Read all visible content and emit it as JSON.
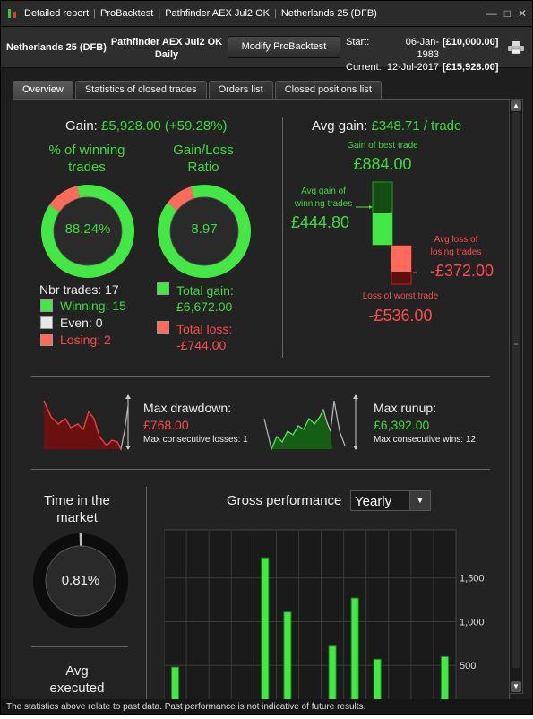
{
  "window": {
    "title_parts": [
      "Detailed report",
      "ProBacktest",
      "Pathfinder AEX Jul2 OK",
      "Netherlands 25 (DFB)"
    ],
    "controls": [
      "—",
      "□",
      "✕"
    ]
  },
  "header": {
    "instrument": "Netherlands 25 (DFB)",
    "strategy_line1": "Pathfinder AEX Jul2 OK",
    "strategy_line2": "Daily",
    "modify_button": "Modify ProBacktest",
    "start_label": "Start:",
    "start_date": "06-Jan-1983",
    "start_value": "[£10,000.00]",
    "current_label": "Current:",
    "current_date": "12-Jul-2017",
    "current_value": "[£15,928.00]"
  },
  "tabs": [
    "Overview",
    "Statistics of closed trades",
    "Orders list",
    "Closed positions list"
  ],
  "overview": {
    "gain_label": "Gain:",
    "gain_value": "£5,928.00 (+59.28%)",
    "winning_title_1": "% of winning",
    "winning_title_2": "trades",
    "winning_pct_text": "88.24%",
    "winning_fraction": 0.8824,
    "ratio_title_1": "Gain/Loss",
    "ratio_title_2": "Ratio",
    "ratio_text": "8.97",
    "ratio_fraction": 0.8997,
    "nbr_trades": "Nbr trades: 17",
    "winning": "Winning: 15",
    "even": "Even: 0",
    "losing": "Losing: 2",
    "total_gain_label": "Total gain:",
    "total_gain_value": "£6,672.00",
    "total_loss_label": "Total loss:",
    "total_loss_value": "-£744.00",
    "avg_gain_label": "Avg gain:",
    "avg_gain_value": "£348.71 / trade",
    "best_trade_label": "Gain of best trade",
    "best_trade_value": "£884.00",
    "avg_win_label_1": "Avg gain of",
    "avg_win_label_2": "winning trades",
    "avg_win_value": "£444.80",
    "avg_loss_label_1": "Avg loss of",
    "avg_loss_label_2": "losing trades",
    "avg_loss_value": "-£372.00",
    "worst_trade_label": "Loss of worst trade",
    "worst_trade_value": "-£536.00",
    "max_drawdown_label": "Max drawdown:",
    "max_drawdown_value": "£768.00",
    "max_consec_losses": "Max consecutive losses: 1",
    "max_runup_label": "Max runup:",
    "max_runup_value": "£6,392.00",
    "max_consec_wins": "Max consecutive wins: 12",
    "time_market_1": "Time in the",
    "time_market_2": "market",
    "time_market_text": "0.81%",
    "time_market_fraction": 0.0081,
    "avg_executed_1": "Avg",
    "avg_executed_2": "executed",
    "gross_perf_label": "Gross performance",
    "period_select": "Yearly"
  },
  "chart_data": {
    "type": "bar",
    "title": "Gross performance",
    "ytick_labels": [
      "1,500",
      "1,000",
      "500"
    ],
    "yticks": [
      1500,
      1000,
      500
    ],
    "ylim": [
      0,
      2050
    ],
    "values": [
      480,
      1730,
      1110,
      0,
      0,
      720,
      1270,
      570,
      0,
      0,
      600
    ],
    "x_positions": [
      0.5,
      4.5,
      5.5,
      0,
      0,
      7.5,
      8.5,
      9.5,
      0,
      0,
      12.5
    ],
    "grid": true
  },
  "footer": "The statistics above relate to past data. Past performance is not indicative of future results.",
  "colors": {
    "green": "#3ddc3d",
    "red": "#ff4a4a",
    "accent_green": "#33cc33"
  }
}
